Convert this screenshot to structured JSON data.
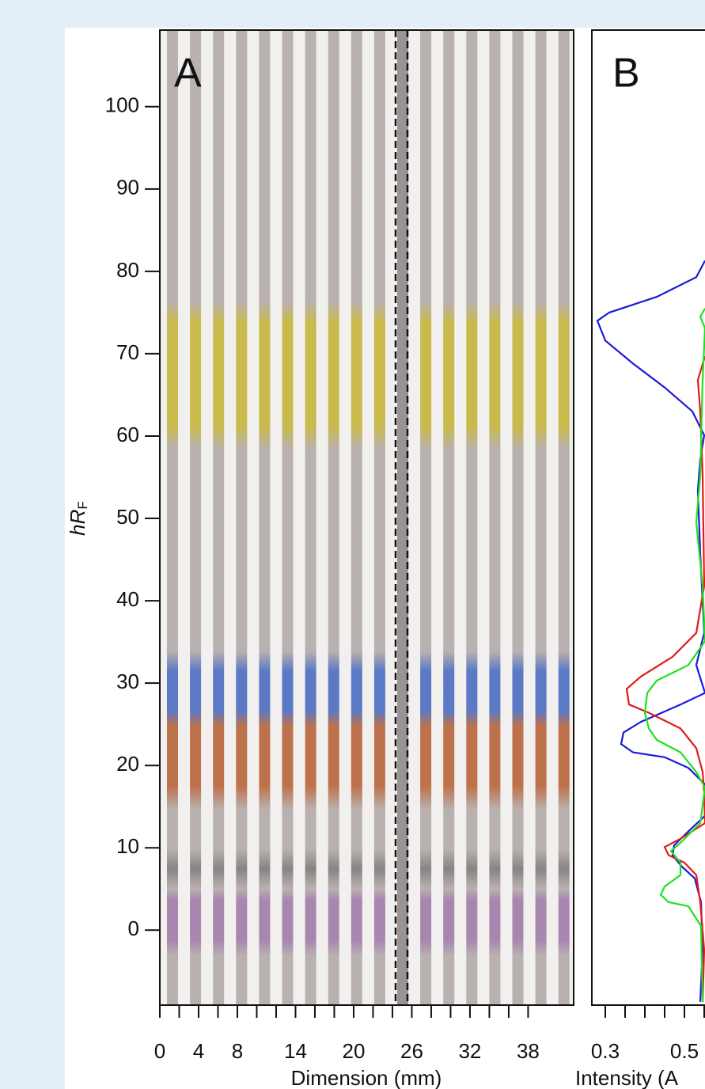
{
  "chart_data": [
    {
      "type": "strip",
      "panel_label": "A",
      "ylabel": "hR",
      "ylabel_subscript": "F",
      "xlabel": "Dimension (mm)",
      "xlim": [
        0,
        42.7
      ],
      "xticks": [
        0,
        4,
        8,
        14,
        20,
        26,
        32,
        38
      ],
      "xminor_ticks": [
        2,
        6,
        10,
        12,
        16,
        18,
        22,
        24,
        28,
        30,
        34,
        36
      ],
      "ylim": [
        -9.1,
        109.3
      ],
      "yticks": [
        0,
        10,
        20,
        30,
        40,
        50,
        60,
        70,
        80,
        90,
        100
      ]
    },
    {
      "type": "line",
      "panel_label": "B",
      "xlabel": "Intensity (A",
      "xlim": [
        0.266,
        0.552
      ],
      "xticks": [
        0.3,
        0.5
      ],
      "xminor_ticks": [
        0.35,
        0.4,
        0.45,
        0.55
      ],
      "ylim": [
        -9.1,
        109.3
      ],
      "series": [
        {
          "color": "#1a1adb",
          "x": [
            0.552,
            0.53,
            0.43,
            0.31,
            0.28,
            0.3,
            0.37,
            0.45,
            0.52,
            0.55,
            0.54,
            0.534,
            0.54,
            0.55,
            0.53,
            0.552,
            0.49,
            0.39,
            0.346,
            0.34,
            0.37,
            0.45,
            0.51,
            0.55,
            0.552,
            0.51,
            0.474,
            0.47,
            0.494,
            0.526,
            0.542,
            0.546,
            0.54
          ],
          "y": [
            81.3,
            79.3,
            76.9,
            75.0,
            74.0,
            71.6,
            68.8,
            65.9,
            63.0,
            60.1,
            57.2,
            53.4,
            45.7,
            36.1,
            32.2,
            28.8,
            27.4,
            25.3,
            24.0,
            22.6,
            21.6,
            21.0,
            19.7,
            17.8,
            13.9,
            12.0,
            10.3,
            9.1,
            7.7,
            6.3,
            3.4,
            -2.4,
            -8.7
          ]
        },
        {
          "color": "#e01a1a",
          "x": [
            0.552,
            0.534,
            0.54,
            0.546,
            0.55,
            0.53,
            0.47,
            0.39,
            0.354,
            0.36,
            0.41,
            0.49,
            0.53,
            0.546,
            0.55,
            0.552,
            0.49,
            0.45,
            0.46,
            0.5,
            0.53,
            0.54,
            0.55,
            0.546
          ],
          "y": [
            69.7,
            66.8,
            63.0,
            55.3,
            41.8,
            36.1,
            33.2,
            30.8,
            29.3,
            27.4,
            26.4,
            24.5,
            22.1,
            19.2,
            16.8,
            13.0,
            11.1,
            10.1,
            9.1,
            8.2,
            6.7,
            3.4,
            -2.4,
            -8.7
          ]
        },
        {
          "color": "#1fe01f",
          "x": [
            0.552,
            0.54,
            0.552,
            0.546,
            0.54,
            0.53,
            0.546,
            0.552,
            0.51,
            0.43,
            0.406,
            0.4,
            0.41,
            0.43,
            0.49,
            0.53,
            0.552,
            0.54,
            0.49,
            0.466,
            0.49,
            0.49,
            0.45,
            0.44,
            0.46,
            0.51,
            0.542,
            0.546
          ],
          "y": [
            75.5,
            74.5,
            73.1,
            66.8,
            55.3,
            49.5,
            41.8,
            35.1,
            32.2,
            30.3,
            28.8,
            26.4,
            24.5,
            23.1,
            21.6,
            19.2,
            17.3,
            13.0,
            10.6,
            9.6,
            8.2,
            6.7,
            5.3,
            4.3,
            3.4,
            2.9,
            0.5,
            -8.7
          ]
        }
      ]
    }
  ]
}
